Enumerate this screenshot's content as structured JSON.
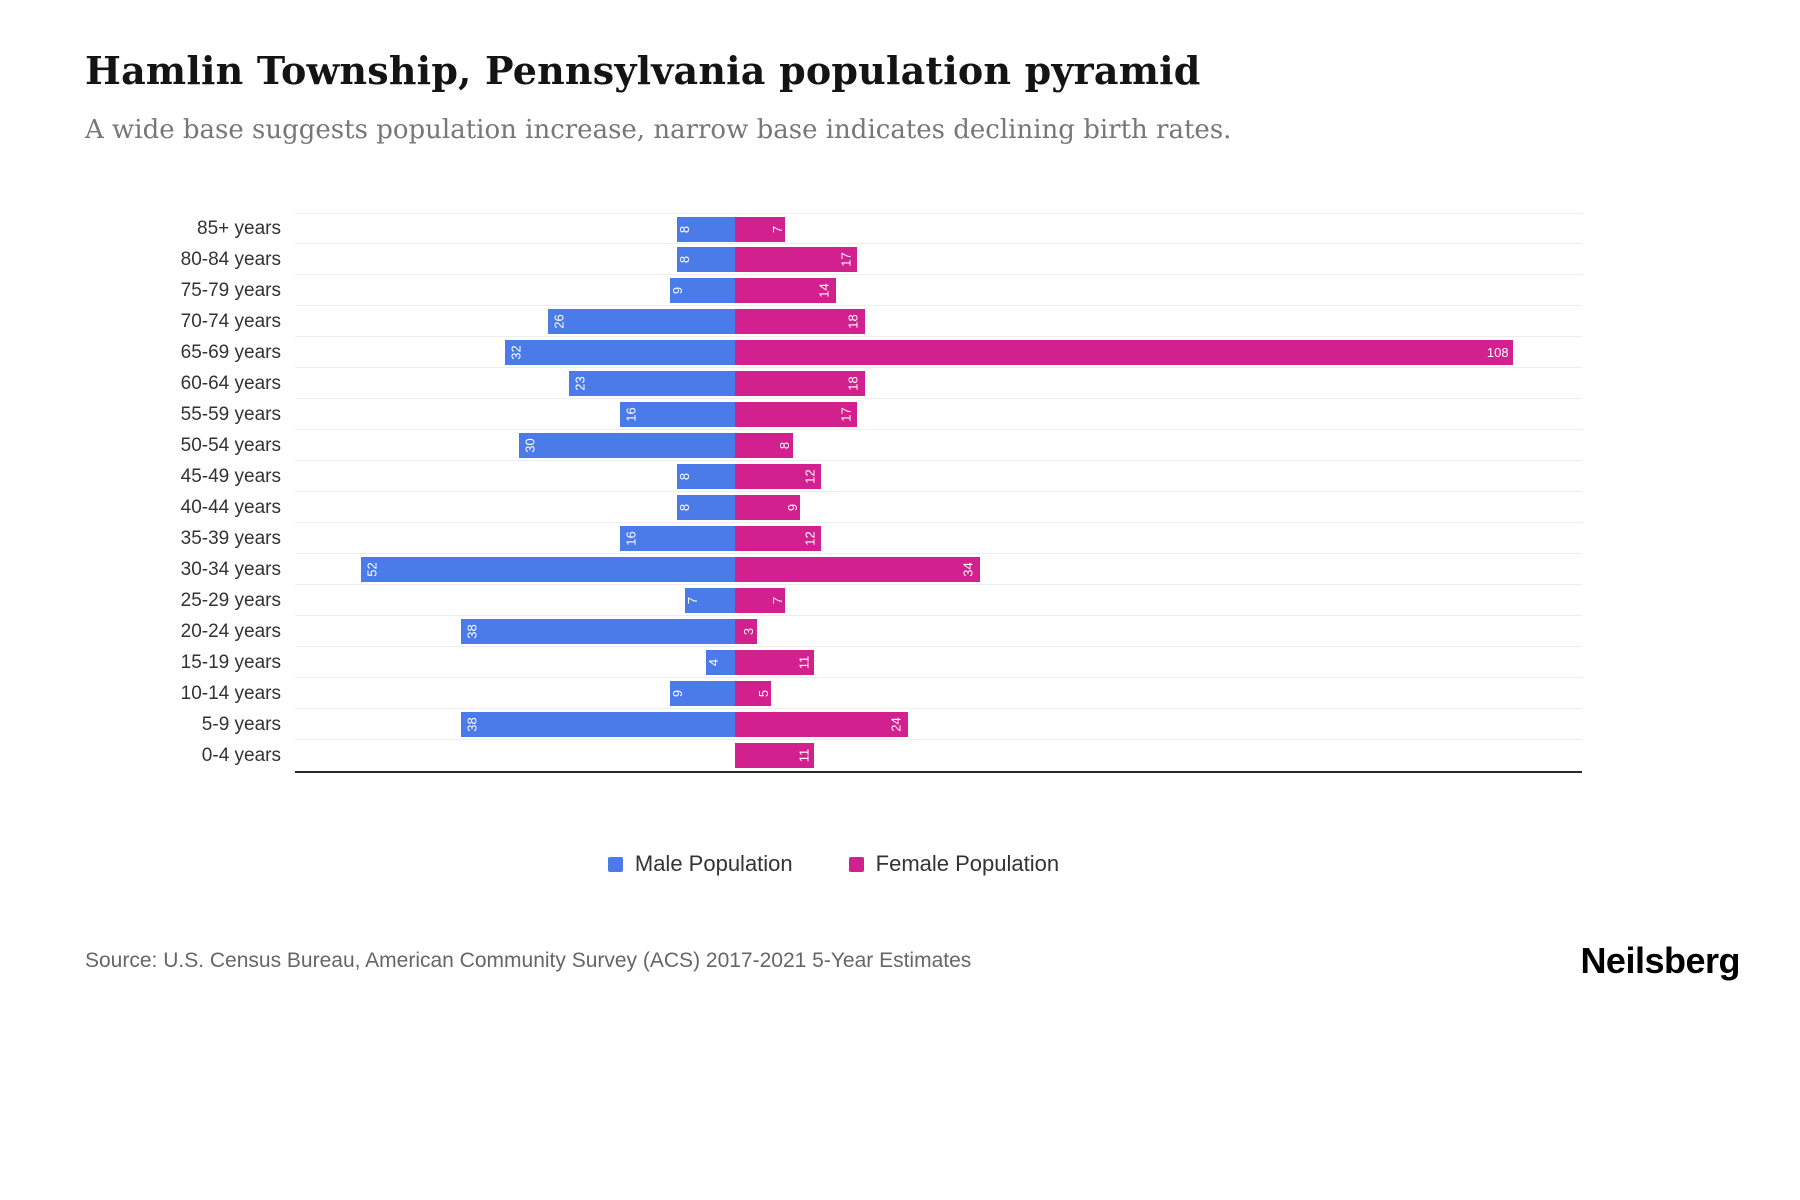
{
  "header": {
    "title": "Hamlin Township, Pennsylvania population pyramid",
    "subtitle": "A wide base suggests population increase, narrow base indicates declining birth rates."
  },
  "legend": {
    "male_label": "Male Population",
    "female_label": "Female Population"
  },
  "footer": {
    "source": "Source: U.S. Census Bureau, American Community Survey (ACS) 2017-2021 5-Year Estimates",
    "brand": "Neilsberg"
  },
  "colors": {
    "male": "#4a7be8",
    "female": "#d2218e"
  },
  "chart_data": {
    "type": "bar",
    "variant": "population-pyramid",
    "title": "Hamlin Township, Pennsylvania population pyramid",
    "categories": [
      "85+ years",
      "80-84 years",
      "75-79 years",
      "70-74 years",
      "65-69 years",
      "60-64 years",
      "55-59 years",
      "50-54 years",
      "45-49 years",
      "40-44 years",
      "35-39 years",
      "30-34 years",
      "25-29 years",
      "20-24 years",
      "15-19 years",
      "10-14 years",
      "5-9 years",
      "0-4 years"
    ],
    "series": [
      {
        "name": "Male Population",
        "values": [
          8,
          8,
          9,
          26,
          32,
          23,
          16,
          30,
          8,
          8,
          16,
          52,
          7,
          38,
          4,
          9,
          38,
          0
        ]
      },
      {
        "name": "Female Population",
        "values": [
          7,
          17,
          14,
          18,
          108,
          18,
          17,
          8,
          12,
          9,
          12,
          34,
          7,
          3,
          11,
          5,
          24,
          11
        ]
      }
    ],
    "male_axis_max": 61,
    "female_axis_max": 118,
    "grid": true,
    "legend_position": "bottom"
  }
}
